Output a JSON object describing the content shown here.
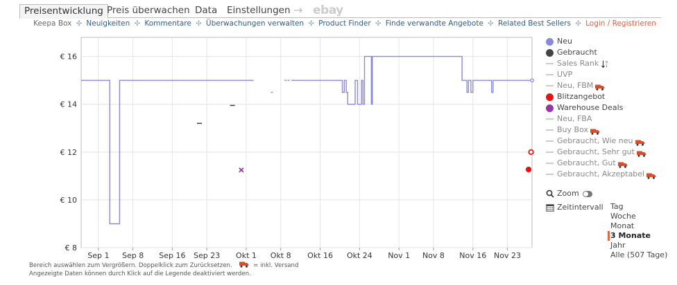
{
  "tabs": [
    {
      "label": "Preisentwicklung",
      "active": true
    },
    {
      "label": "Preis überwachen"
    },
    {
      "label": "Data"
    },
    {
      "label": "Einstellungen"
    }
  ],
  "tab_arrow": "→",
  "tab_ebay": "ebay",
  "subnav": {
    "first": "Keepa Box",
    "links": [
      "Neuigkeiten",
      "Kommentare",
      "Überwachungen verwalten",
      "Product Finder",
      "Finde verwandte Angebote",
      "Related Best Sellers"
    ],
    "login": "Login / Registrieren",
    "separator": "✣"
  },
  "legend": [
    {
      "label": "Neu",
      "type": "dot",
      "color": "#8888dd"
    },
    {
      "label": "Gebraucht",
      "type": "dot",
      "color": "#444444"
    },
    {
      "label": "Sales Rank",
      "type": "line",
      "extra": "sort-icon"
    },
    {
      "label": "UVP",
      "type": "line"
    },
    {
      "label": "Neu, FBM",
      "type": "line",
      "truck": true
    },
    {
      "label": "Blitzangebot",
      "type": "dot",
      "color": "#ee1111"
    },
    {
      "label": "Warehouse Deals",
      "type": "dot",
      "color": "#9933aa"
    },
    {
      "label": "Neu, FBA",
      "type": "line"
    },
    {
      "label": "Buy Box",
      "type": "line",
      "truck": true
    },
    {
      "label": "Gebraucht, Wie neu",
      "type": "line",
      "truck": true
    },
    {
      "label": "Gebraucht, Sehr gut",
      "type": "line",
      "truck": true
    },
    {
      "label": "Gebraucht, Gut",
      "type": "line",
      "truck": true
    },
    {
      "label": "Gebraucht, Akzeptabel",
      "type": "line",
      "truck": true
    }
  ],
  "tools": {
    "zoom_label": "Zoom",
    "interval_label": "Zeitintervall"
  },
  "ranges": [
    "Tag",
    "Woche",
    "Monat",
    "3 Monate",
    "Jahr",
    "Alle (507 Tage)"
  ],
  "active_range": "3 Monate",
  "footnotes": {
    "line1": "Bereich auswählen zum Vergrößern. Doppelklick zum Zurücksetzen.",
    "line1_suffix": "= inkl. Versand",
    "line2": "Angezeigte Daten können durch Klick auf die Legende deaktiviert werden."
  },
  "colors": {
    "new_series": "#8888dd",
    "used_series": "#444444",
    "lightning": "#ee1111",
    "warehouse": "#9933aa",
    "accent": "#e8663b"
  },
  "chart_data": {
    "type": "line",
    "y_ticks": [
      "€ 8",
      "€ 10",
      "€ 12",
      "€ 14",
      "€ 16"
    ],
    "ylim": [
      8,
      16.8
    ],
    "x_ticks": [
      {
        "label": "Sep 1",
        "day": 0
      },
      {
        "label": "Sep 8",
        "day": 7
      },
      {
        "label": "Sep 16",
        "day": 15
      },
      {
        "label": "Sep 23",
        "day": 22
      },
      {
        "label": "Okt 1",
        "day": 30
      },
      {
        "label": "Okt 8",
        "day": 37
      },
      {
        "label": "Okt 16",
        "day": 45
      },
      {
        "label": "Okt 24",
        "day": 53
      },
      {
        "label": "Nov 1",
        "day": 61
      },
      {
        "label": "Nov 8",
        "day": 68
      },
      {
        "label": "Nov 16",
        "day": 76
      },
      {
        "label": "Nov 23",
        "day": 83
      }
    ],
    "xlim": [
      -3.5,
      88
    ],
    "grid": true,
    "series": [
      {
        "name": "Neu",
        "step": true,
        "points": [
          [
            -3.5,
            15
          ],
          [
            2.3,
            15
          ],
          [
            2.3,
            9
          ],
          [
            4.3,
            9
          ],
          [
            4.3,
            15
          ],
          [
            31.5,
            15
          ],
          [
            null,
            null
          ],
          [
            39.2,
            15
          ],
          [
            49.5,
            15
          ],
          [
            49.5,
            14.5
          ],
          [
            49.9,
            14.5
          ],
          [
            49.9,
            15
          ],
          [
            50.3,
            15
          ],
          [
            50.3,
            14.5
          ],
          [
            50.6,
            14.5
          ],
          [
            50.6,
            14
          ],
          [
            52.1,
            14
          ],
          [
            52.1,
            15
          ],
          [
            52.6,
            15
          ],
          [
            52.6,
            14
          ],
          [
            53.4,
            14
          ],
          [
            53.4,
            15
          ],
          [
            53.7,
            15
          ],
          [
            53.7,
            14
          ],
          [
            54.0,
            14
          ],
          [
            54.0,
            16
          ],
          [
            55.4,
            16
          ],
          [
            55.4,
            14
          ],
          [
            55.6,
            14
          ],
          [
            55.6,
            16
          ],
          [
            73.8,
            16
          ],
          [
            73.8,
            15
          ],
          [
            74.8,
            15
          ],
          [
            74.8,
            14.5
          ],
          [
            75.1,
            14.5
          ],
          [
            75.1,
            15
          ],
          [
            75.6,
            15
          ],
          [
            75.6,
            14.5
          ],
          [
            76.0,
            14.5
          ],
          [
            76.0,
            15
          ],
          [
            79.8,
            15
          ],
          [
            79.8,
            14.5
          ],
          [
            80.1,
            14.5
          ],
          [
            80.1,
            15
          ],
          [
            88,
            15
          ]
        ]
      }
    ],
    "used_points": [
      [
        20.5,
        13.2
      ],
      [
        27.2,
        13.95
      ]
    ],
    "new_fragments": [
      [
        35.2,
        14.5
      ],
      [
        38.0,
        15
      ],
      [
        38.6,
        15
      ]
    ],
    "warehouse_points": [
      [
        29.0,
        11.25
      ]
    ],
    "lightning_points": [
      [
        87.8,
        12
      ],
      [
        87.3,
        11.27
      ]
    ]
  }
}
